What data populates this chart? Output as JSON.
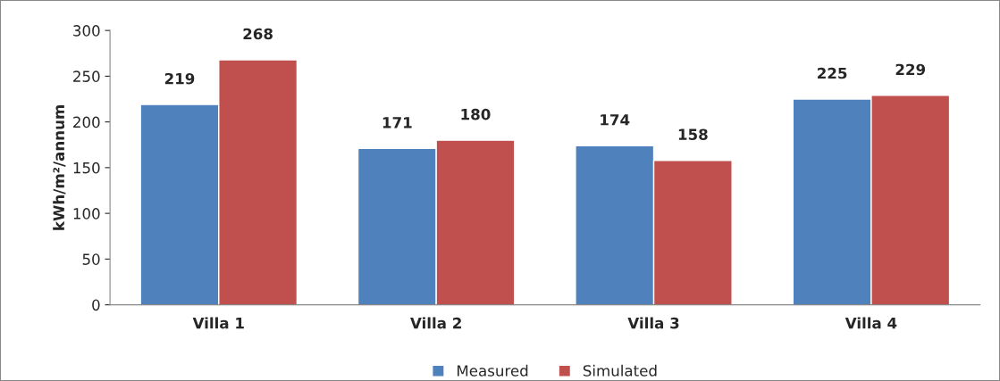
{
  "chart_data": {
    "type": "bar",
    "ylabel": "kWh/m²/annum",
    "categories": [
      "Villa 1",
      "Villa 2",
      "Villa 3",
      "Villa 4"
    ],
    "series": [
      {
        "name": "Measured",
        "color": "#4f81bd",
        "values": [
          219,
          171,
          174,
          225
        ]
      },
      {
        "name": "Simulated",
        "color": "#c0504d",
        "values": [
          268,
          180,
          158,
          229
        ]
      }
    ],
    "ylim": [
      0,
      300
    ],
    "yticks": [
      0,
      50,
      100,
      150,
      200,
      250,
      300
    ],
    "grid": false,
    "legend": "bottom",
    "data_labels": true
  }
}
